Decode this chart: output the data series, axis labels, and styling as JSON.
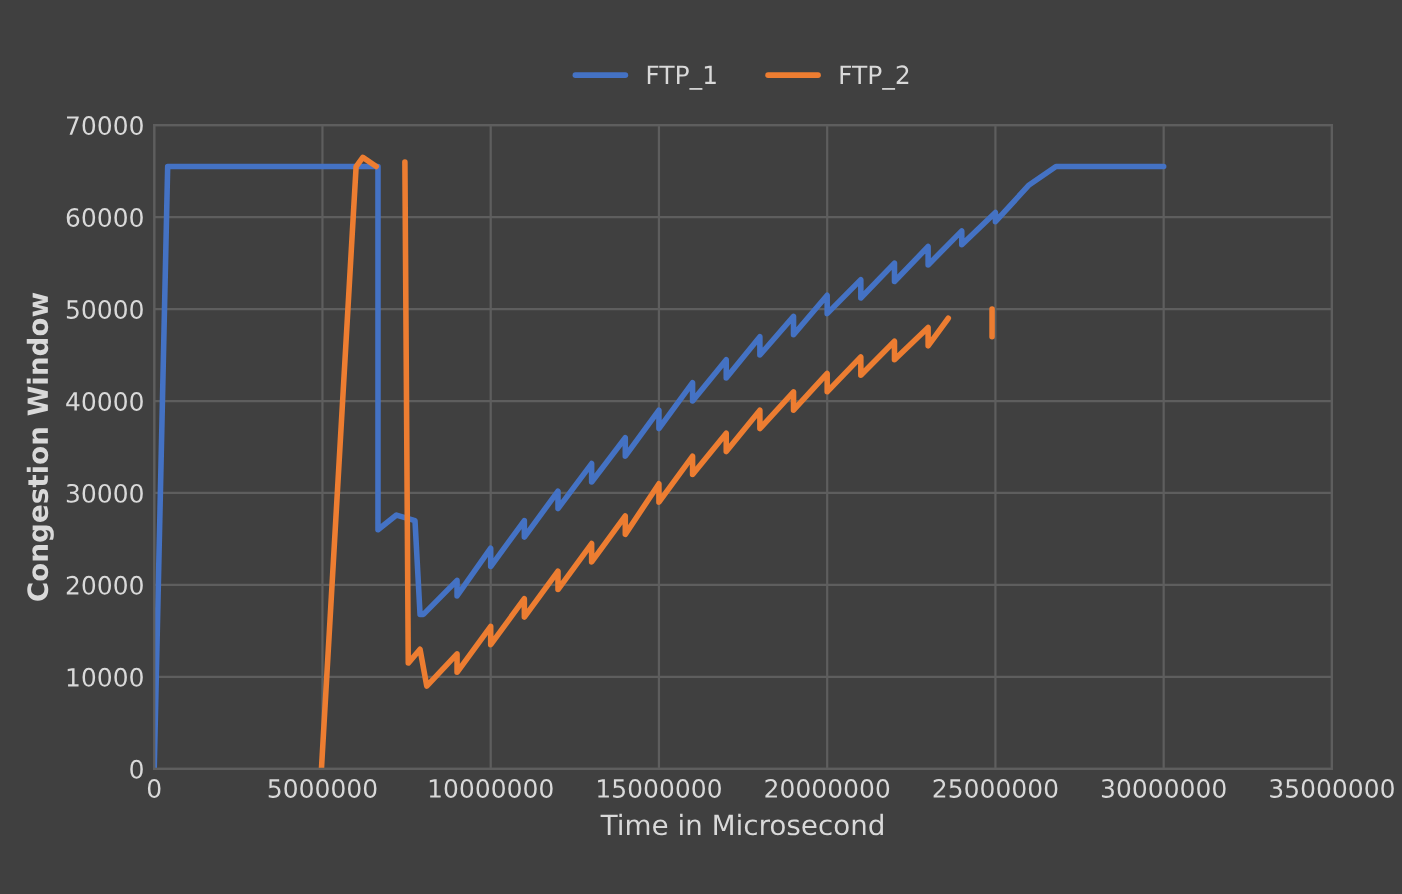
{
  "chart_data": {
    "type": "line",
    "xlabel": "Time in Microsecond",
    "ylabel": "Congestion Window",
    "xlim": [
      0,
      35000000
    ],
    "xticks": [
      0,
      5000000,
      10000000,
      15000000,
      20000000,
      25000000,
      30000000,
      35000000
    ],
    "ylim": [
      0,
      70000
    ],
    "yticks": [
      0,
      10000,
      20000,
      30000,
      40000,
      50000,
      60000,
      70000
    ],
    "grid": true,
    "legend": "top",
    "line_style": "solid",
    "series": [
      {
        "name": "FTP_1",
        "color": "#4472c4",
        "x": [
          0,
          400000,
          6650000,
          6650000,
          7200000,
          7200000,
          7750000,
          7750000,
          7900000,
          8000000,
          9000000,
          9000000,
          10000000,
          10000000,
          11000000,
          11000000,
          12000000,
          12000000,
          13000000,
          13000000,
          14000000,
          14000000,
          15000000,
          15000000,
          16000000,
          16000000,
          17000000,
          17000000,
          18000000,
          18000000,
          19000000,
          19000000,
          20000000,
          20000000,
          21000000,
          21000000,
          22000000,
          22000000,
          23000000,
          23000000,
          24000000,
          24000000,
          25000000,
          25000000,
          26000000,
          26800000,
          30000000
        ],
        "values": [
          0,
          65500,
          65500,
          26000,
          27600,
          27600,
          27000,
          27000,
          16800,
          16800,
          20500,
          18800,
          24000,
          22000,
          27000,
          25200,
          30200,
          28300,
          33200,
          31200,
          36000,
          34000,
          39000,
          37000,
          42000,
          40000,
          44500,
          42500,
          47000,
          45000,
          49200,
          47200,
          51500,
          49500,
          53200,
          51200,
          55000,
          53000,
          56800,
          54800,
          58500,
          57000,
          60500,
          59500,
          63500,
          65500,
          65500
        ]
      },
      {
        "name": "FTP_2",
        "color": "#ed7d31",
        "x": [
          4970000,
          6000000,
          6200000,
          6600000
        ],
        "values": [
          0,
          65500,
          66500,
          65500
        ]
      },
      {
        "color": "#ed7d31",
        "x": [
          7450000,
          7550000,
          7900000,
          8100000,
          9000000,
          9000000,
          10000000,
          10000000,
          11000000,
          11000000,
          12000000,
          12000000,
          13000000,
          13000000,
          14000000,
          14000000,
          15000000,
          15000000,
          16000000,
          16000000,
          17000000,
          17000000,
          18000000,
          18000000,
          19000000,
          19000000,
          20000000,
          20000000,
          21000000,
          21000000,
          22000000,
          22000000,
          23000000,
          23000000,
          23600000
        ],
        "values": [
          66000,
          11500,
          13000,
          9000,
          12500,
          10500,
          15500,
          13500,
          18500,
          16500,
          21500,
          19500,
          24500,
          22500,
          27500,
          25500,
          31000,
          29000,
          34000,
          32000,
          36500,
          34500,
          39000,
          37000,
          41000,
          39000,
          43000,
          41000,
          44800,
          42800,
          46500,
          44500,
          48000,
          46000,
          49000
        ]
      },
      {
        "color": "#ed7d31",
        "x": [
          24900000,
          24900000
        ],
        "values": [
          47000,
          50000
        ]
      }
    ]
  }
}
